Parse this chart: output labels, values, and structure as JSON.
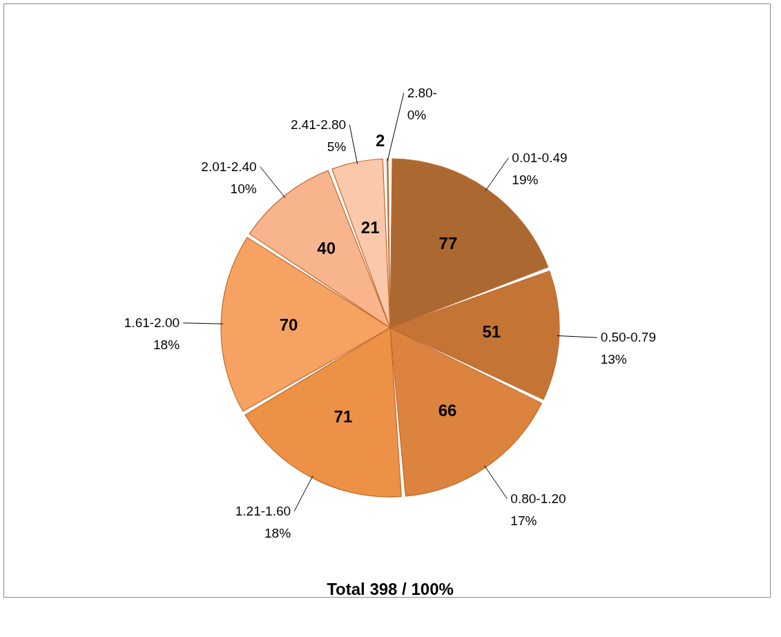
{
  "chart_data": {
    "type": "pie",
    "title": "Total 398 / 100%",
    "categories": [
      "0.01-0.49",
      "0.50-0.79",
      "0.80-1.20",
      "1.21-1.60",
      "1.61-2.00",
      "2.01-2.40",
      "2.41-2.80",
      "2.80-"
    ],
    "values": [
      77,
      51,
      66,
      71,
      70,
      40,
      21,
      2
    ],
    "annotations": [
      {
        "text": "19%",
        "x": "0.01-0.49"
      },
      {
        "text": "13%",
        "x": "0.50-0.79"
      },
      {
        "text": "17%",
        "x": "0.80-1.20"
      },
      {
        "text": "18%",
        "x": "1.21-1.60"
      },
      {
        "text": "18%",
        "x": "1.61-2.00"
      },
      {
        "text": "10%",
        "x": "2.01-2.40"
      },
      {
        "text": "5%",
        "x": "2.41-2.80"
      },
      {
        "text": "0%",
        "x": "2.80-"
      }
    ],
    "colors": [
      "#ab6830",
      "#c47535",
      "#dc843f",
      "#ec9145",
      "#f6a263",
      "#f8b58d",
      "#fac8ab",
      "#fbd2b8"
    ],
    "data_labels": true
  }
}
